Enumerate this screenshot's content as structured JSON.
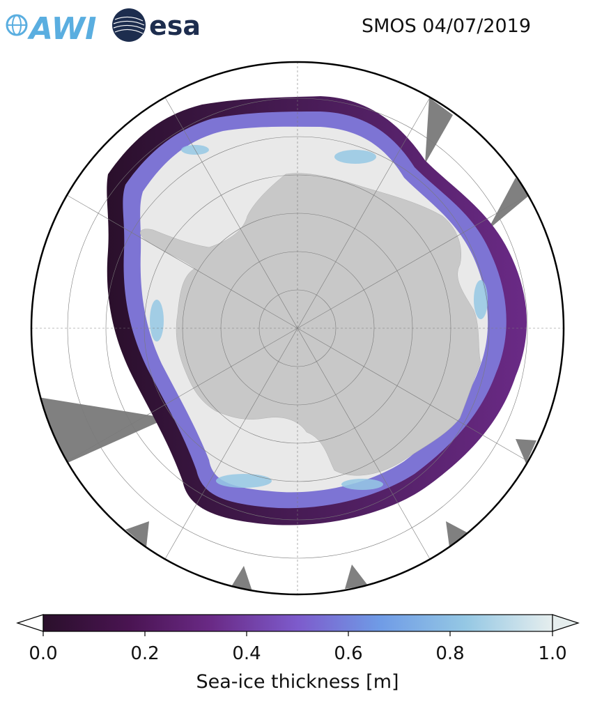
{
  "title": "SMOS 04/07/2019",
  "logos": {
    "awi": {
      "text": "AWI",
      "color": "#5aaee0"
    },
    "esa": {
      "text": "esa",
      "color": "#1d2d4e"
    }
  },
  "map": {
    "projection": "south-polar-stereographic",
    "colors": {
      "land": "#c8c8c8",
      "no_data": "#808080",
      "ocean": "#ffffff",
      "thick_ice": "#e9e9e9"
    }
  },
  "colorbar": {
    "label": "Sea-ice thickness [m]",
    "ticks": [
      "0.0",
      "0.2",
      "0.4",
      "0.6",
      "0.8",
      "1.0"
    ],
    "range": [
      0.0,
      1.0
    ],
    "extend": "both",
    "colormap": [
      "#2a0f2b",
      "#4a1452",
      "#6a2a86",
      "#7d5bcc",
      "#6f9be6",
      "#95c8e4",
      "#e6eeee"
    ]
  }
}
